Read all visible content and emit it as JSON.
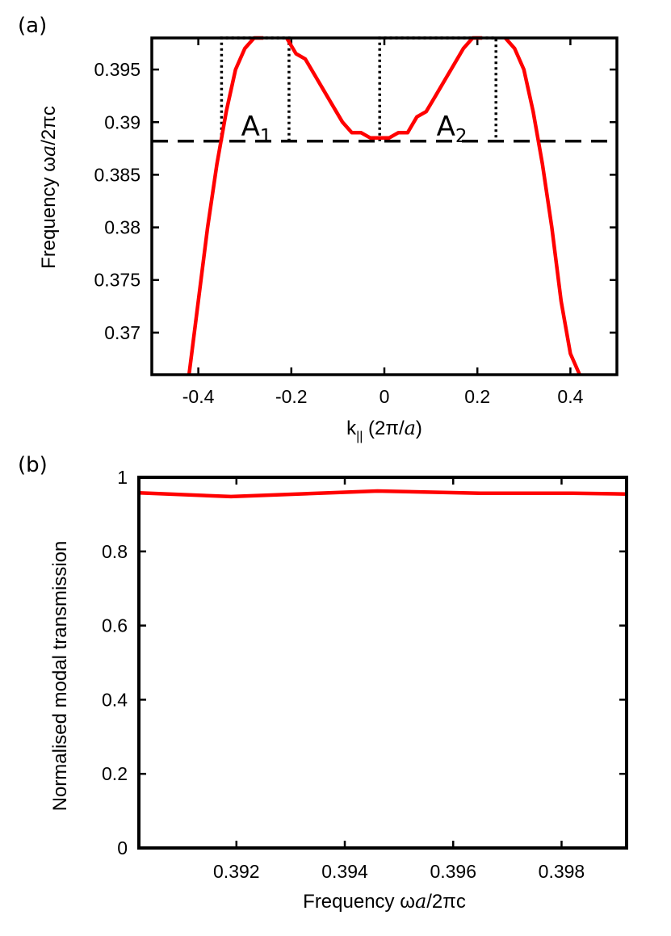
{
  "chart_data": [
    {
      "panel": "(a)",
      "type": "line",
      "xlabel": "k|| (2π/a)",
      "xlabel_parts": {
        "k": "k",
        "sub": "||",
        "open": " (2π/",
        "a": "a",
        "close": ")"
      },
      "ylabel": "Frequency ωa/2πc",
      "ylabel_parts": {
        "pre": "Frequency ω",
        "a": "a",
        "post": "/2πc"
      },
      "xlim": [
        -0.5,
        0.5
      ],
      "ylim": [
        0.366,
        0.398
      ],
      "xticks": [
        -0.4,
        -0.2,
        0,
        0.2,
        0.4
      ],
      "xtick_labels": [
        "-0.4",
        "-0.2",
        "0",
        "0.2",
        "0.4"
      ],
      "yticks": [
        0.37,
        0.375,
        0.38,
        0.385,
        0.39,
        0.395
      ],
      "ytick_labels": [
        "0.37",
        "0.375",
        "0.38",
        "0.385",
        "0.39",
        "0.395"
      ],
      "grid": false,
      "series": [
        {
          "color": "#ff0000",
          "segments": [
            {
              "x": [
                -0.42,
                -0.4,
                -0.38,
                -0.36,
                -0.34,
                -0.32,
                -0.3,
                -0.28,
                -0.26
              ],
              "y": [
                0.366,
                0.373,
                0.38,
                0.386,
                0.391,
                0.395,
                0.397,
                0.398,
                0.398
              ]
            },
            {
              "x": [
                -0.21,
                -0.19,
                -0.17,
                -0.15,
                -0.13,
                -0.11,
                -0.09,
                -0.07,
                -0.05,
                -0.03,
                -0.01,
                0.01,
                0.03,
                0.05,
                0.07,
                0.09,
                0.11,
                0.13,
                0.15,
                0.17,
                0.19,
                0.21
              ],
              "y": [
                0.398,
                0.3965,
                0.396,
                0.3945,
                0.393,
                0.3915,
                0.39,
                0.389,
                0.389,
                0.3885,
                0.3885,
                0.3885,
                0.389,
                0.389,
                0.3905,
                0.391,
                0.3925,
                0.394,
                0.3955,
                0.397,
                0.398,
                0.398
              ]
            },
            {
              "x": [
                0.26,
                0.28,
                0.3,
                0.32,
                0.34,
                0.36,
                0.38,
                0.4,
                0.42
              ],
              "y": [
                0.398,
                0.397,
                0.395,
                0.391,
                0.386,
                0.38,
                0.373,
                0.368,
                0.366
              ]
            }
          ]
        }
      ],
      "reference_lines": [
        {
          "orientation": "horizontal",
          "y": 0.3882,
          "style": "dashed",
          "color": "#000000"
        }
      ],
      "annotations": [
        {
          "base": "A",
          "sub": "1",
          "x": -0.275,
          "y": 0.3895,
          "box": {
            "x0": -0.35,
            "x1": -0.205,
            "y0": 0.3882,
            "y1": 0.398
          }
        },
        {
          "base": "A",
          "sub": "2",
          "x": 0.145,
          "y": 0.3895,
          "box": {
            "x0": -0.01,
            "x1": 0.24,
            "y0": 0.3882,
            "y1": 0.398
          }
        }
      ]
    },
    {
      "panel": "(b)",
      "type": "line",
      "xlabel": "Frequency ωa/2πc",
      "xlabel_parts": {
        "pre": "Frequency ω",
        "a": "a",
        "post": "/2πc"
      },
      "ylabel": "Normalised modal transmission",
      "xlim": [
        0.3902,
        0.3992
      ],
      "ylim": [
        0,
        1
      ],
      "xticks": [
        0.392,
        0.394,
        0.396,
        0.398
      ],
      "xtick_labels": [
        "0.392",
        "0.394",
        "0.396",
        "0.398"
      ],
      "yticks": [
        0,
        0.2,
        0.4,
        0.6,
        0.8,
        1
      ],
      "ytick_labels": [
        "0",
        "0.2",
        "0.4",
        "0.6",
        "0.8",
        "1"
      ],
      "grid": false,
      "series": [
        {
          "color": "#ff0000",
          "x": [
            0.3902,
            0.3919,
            0.3946,
            0.3965,
            0.3982,
            0.3992
          ],
          "y": [
            0.958,
            0.948,
            0.963,
            0.957,
            0.957,
            0.955
          ]
        }
      ]
    }
  ]
}
